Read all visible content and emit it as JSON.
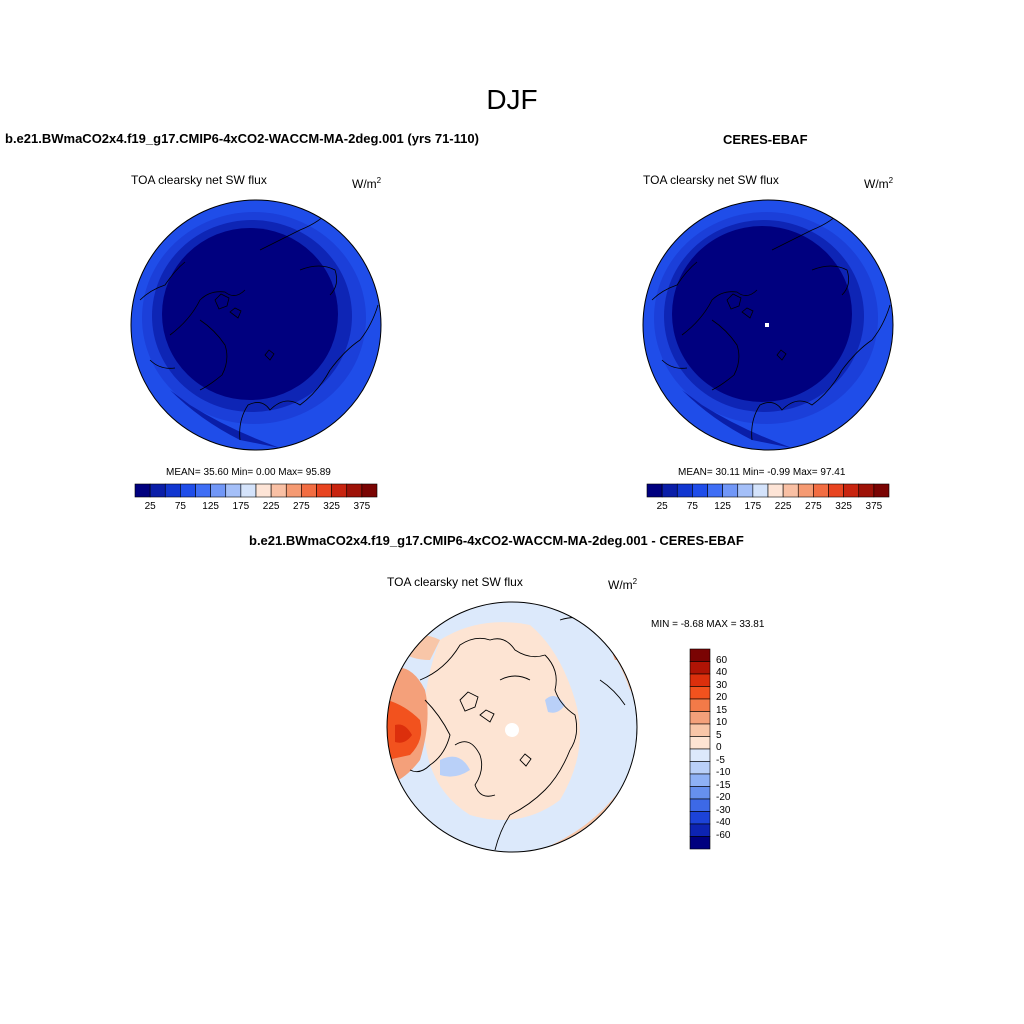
{
  "figure": {
    "title": "DJF"
  },
  "panels": [
    {
      "id": "model",
      "case_title": "b.e21.BWmaCO2x4.f19_g17.CMIP6-4xCO2-WACCM-MA-2deg.001 (yrs 71-110)",
      "variable": "TOA clearsky net SW flux",
      "units_base": "W/m",
      "units_exp": "2",
      "stats": "MEAN=  35.60  Min=   0.00  Max=  95.89"
    },
    {
      "id": "obs",
      "case_title": "CERES-EBAF",
      "variable": "TOA clearsky net SW flux",
      "units_base": "W/m",
      "units_exp": "2",
      "stats": "MEAN=  30.11  Min=  -0.99  Max=  97.41"
    }
  ],
  "abs_colorbar": {
    "colors": [
      "#00007f",
      "#0a1ea8",
      "#1136d0",
      "#1f4de9",
      "#3f6ef5",
      "#7197f7",
      "#a4bff8",
      "#d4e3fb",
      "#fde4d6",
      "#f9c0a4",
      "#f59a72",
      "#f26d42",
      "#e84420",
      "#c8240f",
      "#9e1208",
      "#7a0403"
    ],
    "tick_labels": [
      "25",
      "75",
      "125",
      "175",
      "225",
      "275",
      "325",
      "375"
    ]
  },
  "diff_panel": {
    "case_title": "b.e21.BWmaCO2x4.f19_g17.CMIP6-4xCO2-WACCM-MA-2deg.001 - CERES-EBAF",
    "variable": "TOA clearsky net SW flux",
    "units_base": "W/m",
    "units_exp": "2",
    "minmax": "MIN =  -8.68 MAX =  33.81"
  },
  "diff_colorbar": {
    "colors_top_to_bottom": [
      "#7a0403",
      "#b01405",
      "#dc2f0c",
      "#f2521e",
      "#f37a48",
      "#f4a07a",
      "#f8c6a8",
      "#fde4d3",
      "#dce9fb",
      "#b9d0f8",
      "#8eb1f5",
      "#6690ee",
      "#3d69e6",
      "#1c43d8",
      "#0d24b3",
      "#00007f"
    ],
    "tick_labels": [
      "60",
      "40",
      "30",
      "20",
      "15",
      "10",
      "5",
      "0",
      "-5",
      "-10",
      "-15",
      "-20",
      "-30",
      "-40",
      "-60"
    ]
  }
}
